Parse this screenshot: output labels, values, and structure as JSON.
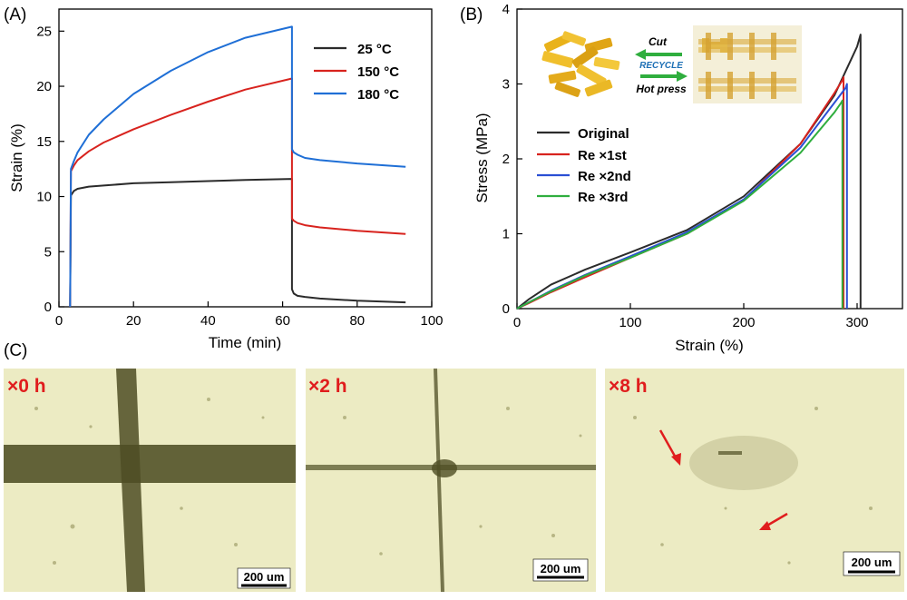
{
  "panels": {
    "a_label": "(A)",
    "b_label": "(B)",
    "c_label": "(C)"
  },
  "colors": {
    "black": "#2b2b2b",
    "red": "#d8231e",
    "blue": "#1f6fd6",
    "blue2": "#2a4fd4",
    "green": "#2fae3e",
    "micro_bg": "#ecebc3",
    "micro_dark": "#4f4e24",
    "arrow": "#e01d1d"
  },
  "chart_data": [
    {
      "type": "line",
      "xlabel": "Time (min)",
      "ylabel": "Strain (%)",
      "xlim": [
        0,
        100
      ],
      "ylim": [
        0,
        27
      ],
      "xticks": [
        "0",
        "20",
        "40",
        "60",
        "80",
        "100"
      ],
      "yticks": [
        "0",
        "5",
        "10",
        "15",
        "20",
        "25"
      ],
      "legend_position": "top-right",
      "series": [
        {
          "name": "25 °C",
          "color": "#2b2b2b",
          "x": [
            3,
            3.2,
            4,
            5,
            8,
            12,
            20,
            30,
            40,
            50,
            62.5,
            62.5,
            63,
            64,
            66,
            70,
            80,
            93
          ],
          "y": [
            0,
            10.1,
            10.5,
            10.7,
            10.9,
            11.0,
            11.2,
            11.3,
            11.4,
            11.5,
            11.6,
            1.6,
            1.2,
            1.0,
            0.9,
            0.75,
            0.55,
            0.4
          ]
        },
        {
          "name": "150 °C",
          "color": "#d8231e",
          "x": [
            3,
            3.2,
            4,
            5,
            8,
            12,
            20,
            30,
            40,
            50,
            62.5,
            62.5,
            63,
            64,
            66,
            70,
            80,
            93
          ],
          "y": [
            0,
            12.3,
            12.8,
            13.3,
            14.1,
            14.9,
            16.1,
            17.4,
            18.6,
            19.7,
            20.7,
            8.0,
            7.8,
            7.6,
            7.4,
            7.2,
            6.9,
            6.6
          ]
        },
        {
          "name": "180 °C",
          "color": "#1f6fd6",
          "x": [
            3,
            3.2,
            4,
            5,
            8,
            12,
            20,
            30,
            40,
            50,
            62.5,
            62.5,
            63,
            64,
            66,
            70,
            80,
            93
          ],
          "y": [
            0,
            12.5,
            13.2,
            14.0,
            15.6,
            17.0,
            19.3,
            21.4,
            23.1,
            24.4,
            25.4,
            14.3,
            14.0,
            13.8,
            13.5,
            13.3,
            13.0,
            12.7
          ]
        }
      ]
    },
    {
      "type": "line",
      "xlabel": "Strain (%)",
      "ylabel": "Stress (MPa)",
      "xlim": [
        0,
        340
      ],
      "ylim": [
        0,
        4
      ],
      "xticks": [
        "0",
        "100",
        "200",
        "300"
      ],
      "yticks": [
        "0",
        "1",
        "2",
        "3",
        "4"
      ],
      "legend_position": "center-left",
      "inset_labels": {
        "cut": "Cut",
        "recycle": "RECYCLE",
        "hot_press": "Hot press"
      },
      "series": [
        {
          "name": "Original",
          "color": "#2b2b2b",
          "x": [
            0,
            10,
            30,
            60,
            100,
            150,
            200,
            250,
            280,
            300,
            303,
            303
          ],
          "y": [
            0,
            0.12,
            0.32,
            0.52,
            0.75,
            1.05,
            1.5,
            2.2,
            2.85,
            3.5,
            3.66,
            0
          ]
        },
        {
          "name": "Re ×1st",
          "color": "#d8231e",
          "x": [
            0,
            10,
            30,
            60,
            100,
            150,
            200,
            250,
            280,
            287,
            288,
            288
          ],
          "y": [
            0,
            0.07,
            0.22,
            0.42,
            0.68,
            1.0,
            1.45,
            2.2,
            2.88,
            3.05,
            3.09,
            0
          ]
        },
        {
          "name": "Re ×2nd",
          "color": "#2a4fd4",
          "x": [
            0,
            10,
            30,
            60,
            100,
            150,
            200,
            250,
            280,
            290,
            291,
            291
          ],
          "y": [
            0,
            0.08,
            0.24,
            0.45,
            0.7,
            1.02,
            1.46,
            2.15,
            2.75,
            2.95,
            3.0,
            0
          ]
        },
        {
          "name": "Re ×3rd",
          "color": "#2fae3e",
          "x": [
            0,
            10,
            30,
            60,
            100,
            150,
            200,
            250,
            280,
            286,
            287,
            287
          ],
          "y": [
            0,
            0.08,
            0.23,
            0.44,
            0.68,
            1.0,
            1.44,
            2.08,
            2.62,
            2.75,
            2.78,
            0
          ]
        }
      ]
    }
  ],
  "micrographs": [
    {
      "label": "×0 h",
      "scale": "200 um"
    },
    {
      "label": "×2 h",
      "scale": "200 um"
    },
    {
      "label": "×8 h",
      "scale": "200 um"
    }
  ]
}
